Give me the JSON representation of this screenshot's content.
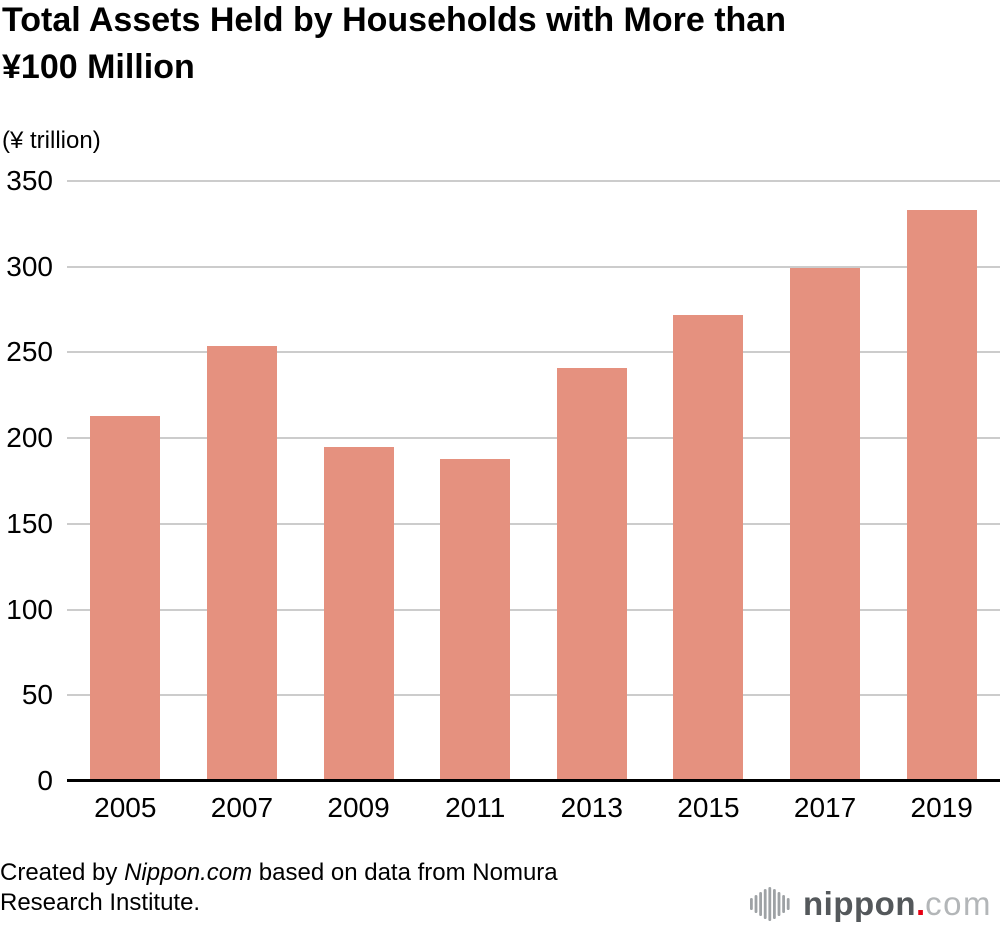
{
  "header": {
    "title_lines": [
      "Total Assets Held by Households with More than",
      "¥100 Million"
    ],
    "unit_label": "(¥ trillion)"
  },
  "chart_data": {
    "type": "bar",
    "title": "Total Assets Held by Households with More than ¥100 Million",
    "categories": [
      "2005",
      "2007",
      "2009",
      "2011",
      "2013",
      "2015",
      "2017",
      "2019"
    ],
    "values": [
      213,
      254,
      195,
      188,
      241,
      272,
      299,
      333
    ],
    "xlabel": "",
    "ylabel": "(¥ trillion)",
    "ylim": [
      0,
      350
    ],
    "yticks": [
      0,
      50,
      100,
      150,
      200,
      250,
      300,
      350
    ],
    "grid": "horizontal",
    "legend": "none",
    "bar_color": "#E5917F",
    "gridline_color": "#CCCCCC",
    "axis_line_color": "#000000",
    "tick_label_color": "#000000"
  },
  "footer": {
    "credit_prefix": "Created by ",
    "credit_site": "Nippon.com",
    "credit_suffix": " based on data from Nomura Research Institute."
  },
  "logo": {
    "icon": "waveform-icon",
    "name": "nippon",
    "dot": ".",
    "tld": "com",
    "name_color": "#54585B",
    "dot_color": "#E60012",
    "tld_color": "#B3B6B8",
    "icon_color": "#9EA2A5"
  }
}
